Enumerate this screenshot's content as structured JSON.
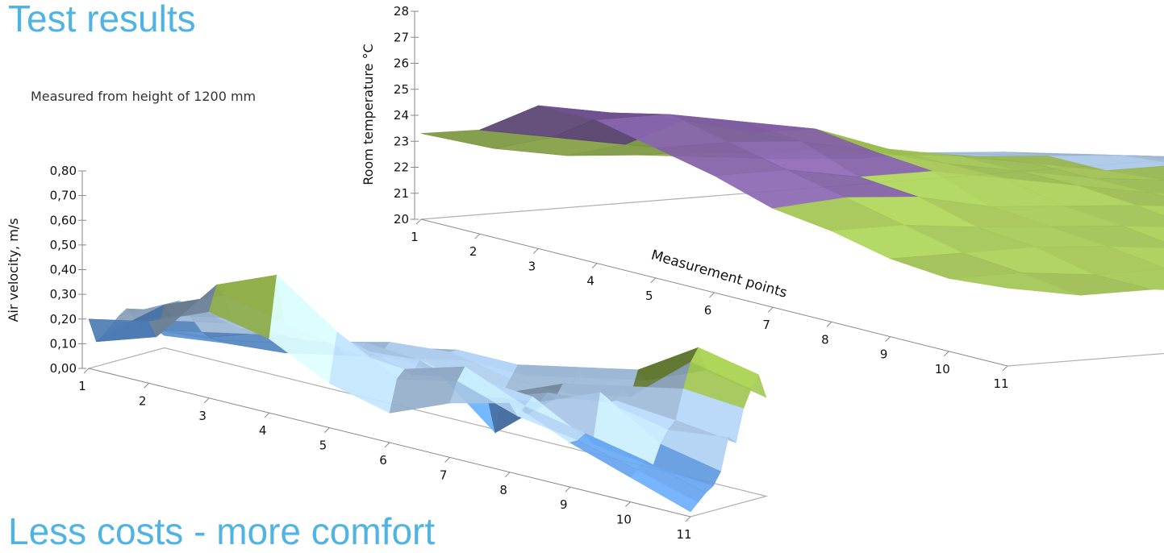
{
  "page": {
    "title": "Test results",
    "subtitle": "Measured from height of 1200 mm",
    "section_heading": "Less costs - more comfort"
  },
  "colors": {
    "heading": "#4fb3e3",
    "purple": "#7a5a9c",
    "green": "#9bbd4f",
    "light_blue": "#a8c6e6",
    "blue": "#5c94d6"
  },
  "chart_data": [
    {
      "type": "surface",
      "title": "",
      "ylabel": "Air velocity, m/s",
      "xlabel": "",
      "zlim": [
        0.0,
        0.8
      ],
      "z_ticks": [
        "0,00",
        "0,10",
        "0,20",
        "0,30",
        "0,40",
        "0,50",
        "0,60",
        "0,70",
        "0,80"
      ],
      "x_ticks": [
        "1",
        "2",
        "3",
        "4",
        "5",
        "6",
        "7",
        "8",
        "9",
        "10",
        "11"
      ],
      "band_colors": [
        "#5c94d6",
        "#a8c6e6",
        "#9bbd4f"
      ],
      "band_edges": [
        0.0,
        0.2,
        0.4,
        0.6
      ],
      "rows": [
        [
          0.2,
          0.25,
          0.35,
          0.3,
          0.18,
          0.12,
          0.22,
          0.28,
          0.18,
          0.1,
          0.02
        ],
        [
          0.1,
          0.18,
          0.45,
          0.55,
          0.38,
          0.25,
          0.3,
          0.22,
          0.18,
          0.12,
          0.05
        ],
        [
          0.12,
          0.3,
          0.4,
          0.35,
          0.3,
          0.28,
          0.35,
          0.25,
          0.2,
          0.15,
          0.08
        ],
        [
          0.15,
          0.25,
          0.3,
          0.28,
          0.32,
          0.25,
          0.3,
          0.28,
          0.15,
          0.12,
          0.1
        ],
        [
          0.18,
          0.3,
          0.25,
          0.3,
          0.28,
          0.3,
          0.22,
          0.25,
          0.35,
          0.2,
          0.15
        ],
        [
          0.2,
          0.25,
          0.28,
          0.25,
          0.3,
          0.28,
          0.2,
          0.28,
          0.3,
          0.25,
          0.28
        ],
        [
          0.15,
          0.2,
          0.25,
          0.28,
          0.25,
          0.25,
          0.05,
          0.25,
          0.3,
          0.28,
          0.25
        ],
        [
          0.1,
          0.15,
          0.2,
          0.25,
          0.25,
          0.22,
          0.2,
          0.3,
          0.35,
          0.4,
          0.38
        ],
        [
          0.1,
          0.12,
          0.2,
          0.22,
          0.28,
          0.3,
          0.25,
          0.25,
          0.3,
          0.5,
          0.45
        ],
        [
          0.08,
          0.1,
          0.15,
          0.2,
          0.25,
          0.3,
          0.3,
          0.35,
          0.4,
          0.55,
          0.5
        ],
        [
          0.05,
          0.08,
          0.1,
          0.15,
          0.2,
          0.25,
          0.25,
          0.3,
          0.35,
          0.45,
          0.4
        ]
      ]
    },
    {
      "type": "surface",
      "title": "",
      "ylabel": "Room temperature °C",
      "xlabel": "Measurement points",
      "zlim": [
        20,
        28
      ],
      "z_ticks": [
        "20",
        "21",
        "22",
        "23",
        "24",
        "25",
        "26",
        "27",
        "28"
      ],
      "x_ticks": [
        "1",
        "2",
        "3",
        "4",
        "5",
        "6",
        "7",
        "8",
        "9",
        "10",
        "11"
      ],
      "band_colors": [
        "#a8c6e6",
        "#9bbd4f",
        "#7a5a9c"
      ],
      "band_edges": [
        20,
        22,
        24,
        26
      ],
      "rows": [
        [
          23.3,
          24.0,
          25.5,
          25.5,
          25.0,
          24.5,
          23.8,
          23.5,
          23.0,
          22.8,
          23.0
        ],
        [
          22.5,
          23.5,
          25.0,
          25.5,
          25.0,
          24.5,
          24.0,
          23.5,
          23.0,
          22.8,
          22.5
        ],
        [
          22.0,
          23.0,
          24.5,
          25.0,
          24.8,
          24.0,
          23.8,
          23.2,
          23.0,
          22.5,
          22.5
        ],
        [
          21.8,
          22.5,
          23.8,
          24.5,
          24.2,
          24.0,
          23.2,
          23.0,
          22.8,
          22.5,
          22.2
        ],
        [
          21.5,
          22.2,
          23.0,
          23.5,
          23.5,
          23.5,
          23.0,
          22.8,
          22.5,
          22.2,
          22.0
        ],
        [
          21.2,
          22.0,
          22.5,
          23.0,
          23.0,
          23.0,
          22.8,
          22.5,
          22.2,
          22.0,
          21.8
        ],
        [
          21.0,
          21.8,
          22.2,
          22.5,
          22.5,
          22.5,
          22.5,
          22.2,
          22.0,
          21.8,
          21.5
        ],
        [
          21.0,
          21.5,
          22.0,
          22.0,
          22.2,
          22.2,
          22.2,
          22.0,
          21.8,
          21.5,
          21.2
        ],
        [
          20.8,
          21.2,
          21.8,
          22.0,
          22.0,
          22.0,
          22.0,
          21.8,
          21.5,
          21.2,
          21.0
        ],
        [
          20.5,
          21.0,
          21.5,
          21.8,
          21.8,
          21.8,
          22.0,
          22.5,
          22.5,
          22.0,
          21.5
        ],
        [
          20.2,
          20.5,
          21.0,
          21.5,
          21.5,
          21.5,
          22.0,
          22.5,
          22.0,
          21.5,
          20.2
        ]
      ]
    }
  ]
}
